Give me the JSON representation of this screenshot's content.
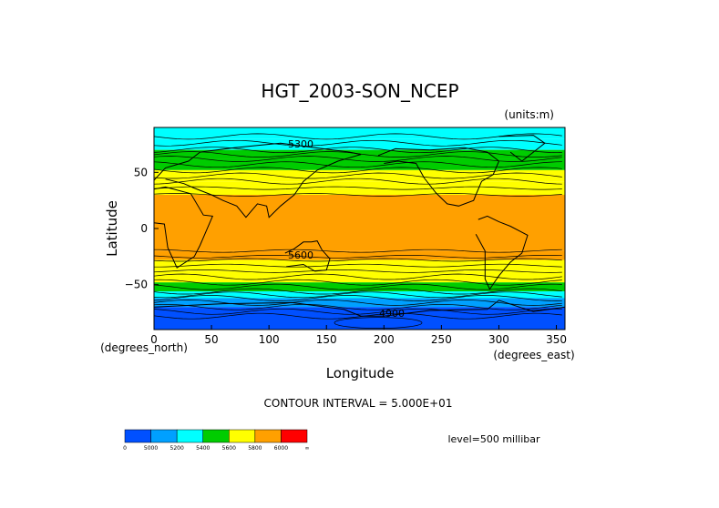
{
  "chart_data": {
    "type": "heatmap",
    "title": "HGT_2003-SON_NCEP",
    "units_note": "(units:m)",
    "xlabel": "Longitude",
    "ylabel": "Latitude",
    "x_unit_label": "(degrees_east)",
    "y_unit_label": "(degrees_north)",
    "xlim": [
      0,
      357.5
    ],
    "ylim": [
      -90,
      90
    ],
    "x_ticks": [
      0,
      50,
      100,
      150,
      200,
      250,
      300,
      350
    ],
    "y_ticks": [
      50,
      0,
      -50
    ],
    "contour_interval_text": "CONTOUR INTERVAL = 5.000E+01",
    "level_text": "level=500 millibar",
    "contour_labels": [
      "5300",
      "5600",
      "4900"
    ],
    "colorbar": {
      "colors": [
        "#0050ff",
        "#00a0ff",
        "#00ffff",
        "#00cc00",
        "#ffff00",
        "#ffa000",
        "#ff0000"
      ],
      "tick_labels": [
        "0",
        "5000",
        "5200",
        "5400",
        "5600",
        "5800",
        "6000",
        "∞"
      ]
    },
    "lat_bands": [
      {
        "lat_from": 90,
        "lat_to": 80,
        "color": "#00ffff"
      },
      {
        "lat_from": 80,
        "lat_to": 70,
        "color": "#00ffff"
      },
      {
        "lat_from": 70,
        "lat_to": 62,
        "color": "#00cc00"
      },
      {
        "lat_from": 62,
        "lat_to": 52,
        "color": "#00cc00"
      },
      {
        "lat_from": 52,
        "lat_to": 42,
        "color": "#ffff00"
      },
      {
        "lat_from": 42,
        "lat_to": 30,
        "color": "#ffff00"
      },
      {
        "lat_from": 30,
        "lat_to": -20,
        "color": "#ffa000"
      },
      {
        "lat_from": -20,
        "lat_to": -28,
        "color": "#ffa000"
      },
      {
        "lat_from": -28,
        "lat_to": -38,
        "color": "#ffff00"
      },
      {
        "lat_from": -38,
        "lat_to": -48,
        "color": "#ffff00"
      },
      {
        "lat_from": -48,
        "lat_to": -56,
        "color": "#00cc00"
      },
      {
        "lat_from": -56,
        "lat_to": -62,
        "color": "#00ffff"
      },
      {
        "lat_from": -62,
        "lat_to": -70,
        "color": "#00a0ff"
      },
      {
        "lat_from": -70,
        "lat_to": -90,
        "color": "#0050ff"
      }
    ]
  }
}
